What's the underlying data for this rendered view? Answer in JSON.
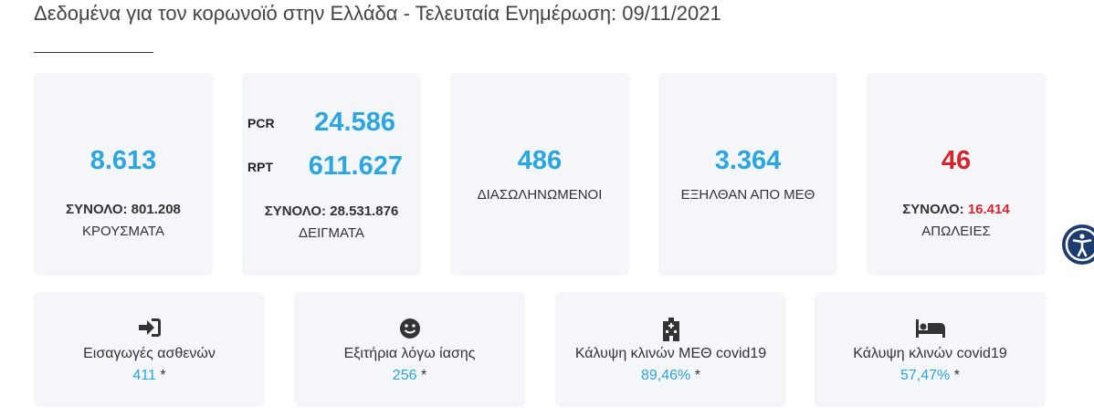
{
  "header": {
    "title": "Δεδομένα για τον κορωνοϊό στην Ελλάδα - Τελευταία Ενημέρωση: 09/11/2021"
  },
  "top_cards": [
    {
      "value": "8.613",
      "total_label": "ΣΥΝΟΛΟ:",
      "total_value": "801.208",
      "label": "ΚΡΟΥΣΜΑΤΑ"
    },
    {
      "rows": [
        {
          "name": "PCR",
          "value": "24.586"
        },
        {
          "name": "RPT",
          "value": "611.627"
        }
      ],
      "total_label": "ΣΥΝΟΛΟ:",
      "total_value": "28.531.876",
      "label": "ΔΕΙΓΜΑΤΑ"
    },
    {
      "value": "486",
      "label": "ΔΙΑΣΩΛΗΝΩΜΕΝΟΙ"
    },
    {
      "value": "3.364",
      "label": "ΕΞΗΛΘΑΝ ΑΠΟ ΜΕΘ"
    },
    {
      "value": "46",
      "total_label": "ΣΥΝΟΛΟ:",
      "total_value": "16.414",
      "label": "ΑΠΩΛΕΙΕΣ"
    }
  ],
  "bottom_cards": [
    {
      "label": "Εισαγωγές ασθενών",
      "value": "411",
      "note": "*"
    },
    {
      "label": "Εξιτήρια λόγω ίασης",
      "value": "256",
      "note": "*"
    },
    {
      "label": "Κάλυψη κλινών ΜΕΘ covid19",
      "value": "89,46%",
      "note": "*"
    },
    {
      "label": "Κάλυψη κλινών covid19",
      "value": "57,47%",
      "note": "*"
    }
  ]
}
